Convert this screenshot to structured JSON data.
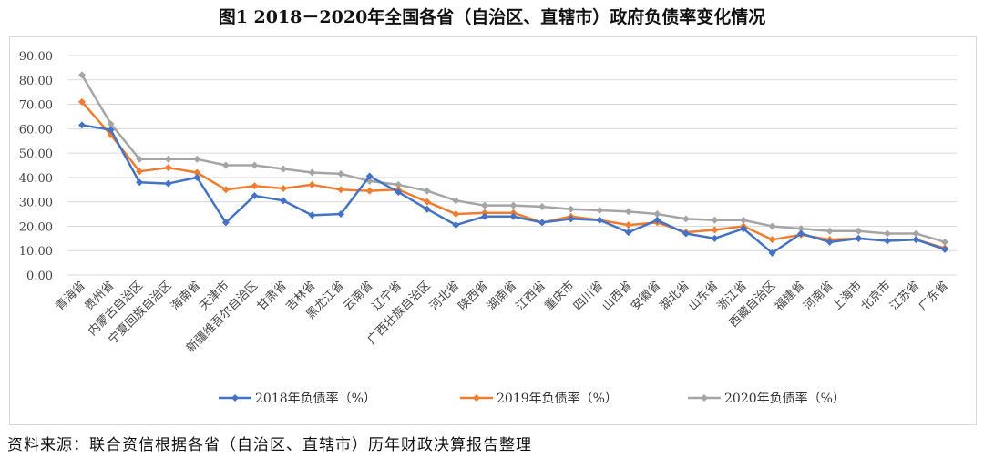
{
  "chart_data": {
    "type": "line",
    "title": "图1  2018－2020年全国各省（自治区、直辖市）政府负债率变化情况",
    "xlabel": "",
    "ylabel": "",
    "ylim": [
      0,
      90
    ],
    "yticks": [
      "0.00",
      "10.00",
      "20.00",
      "30.00",
      "40.00",
      "50.00",
      "60.00",
      "70.00",
      "80.00",
      "90.00"
    ],
    "grid": true,
    "legend_position": "bottom",
    "categories": [
      "青海省",
      "贵州省",
      "内蒙古自治区",
      "宁夏回族自治区",
      "海南省",
      "天津市",
      "新疆维吾尔自治区",
      "甘肃省",
      "吉林省",
      "黑龙江省",
      "云南省",
      "辽宁省",
      "广西壮族自治区",
      "河北省",
      "陕西省",
      "湖南省",
      "江西省",
      "重庆市",
      "四川省",
      "山西省",
      "安徽省",
      "湖北省",
      "山东省",
      "浙江省",
      "西藏自治区",
      "福建省",
      "河南省",
      "上海市",
      "北京市",
      "江苏省",
      "广东省"
    ],
    "series": [
      {
        "name": "2018年负债率（%）",
        "color": "#4472c4",
        "values": [
          61.5,
          59.5,
          38,
          37.5,
          40,
          21.5,
          32.5,
          30.5,
          24.5,
          25,
          40.5,
          34,
          27,
          20.5,
          24,
          24,
          21.5,
          23,
          22.5,
          17.5,
          22.5,
          17,
          15,
          19,
          9,
          17,
          13.5,
          15,
          14,
          14.5,
          10.5
        ]
      },
      {
        "name": "2019年负债率（%）",
        "color": "#ed7d31",
        "values": [
          71,
          57.5,
          42.5,
          44,
          42,
          35,
          36.5,
          35.5,
          37,
          35,
          34.5,
          35,
          30,
          25,
          25.5,
          25.5,
          21.5,
          24,
          22.5,
          20.5,
          21.5,
          17.5,
          18.5,
          20,
          14.5,
          16.5,
          14.5,
          15,
          14,
          14.5,
          11
        ]
      },
      {
        "name": "2020年负债率（%）",
        "color": "#a5a5a5",
        "values": [
          82,
          62,
          47.5,
          47.5,
          47.5,
          45,
          45,
          43.5,
          42,
          41.5,
          38.5,
          37,
          34.5,
          30.5,
          28.5,
          28.5,
          28,
          27,
          26.5,
          26,
          25,
          23,
          22.5,
          22.5,
          20,
          19,
          18,
          18,
          17,
          17,
          13.5
        ]
      }
    ]
  },
  "source": "资料来源：联合资信根据各省（自治区、直辖市）历年财政决算报告整理"
}
